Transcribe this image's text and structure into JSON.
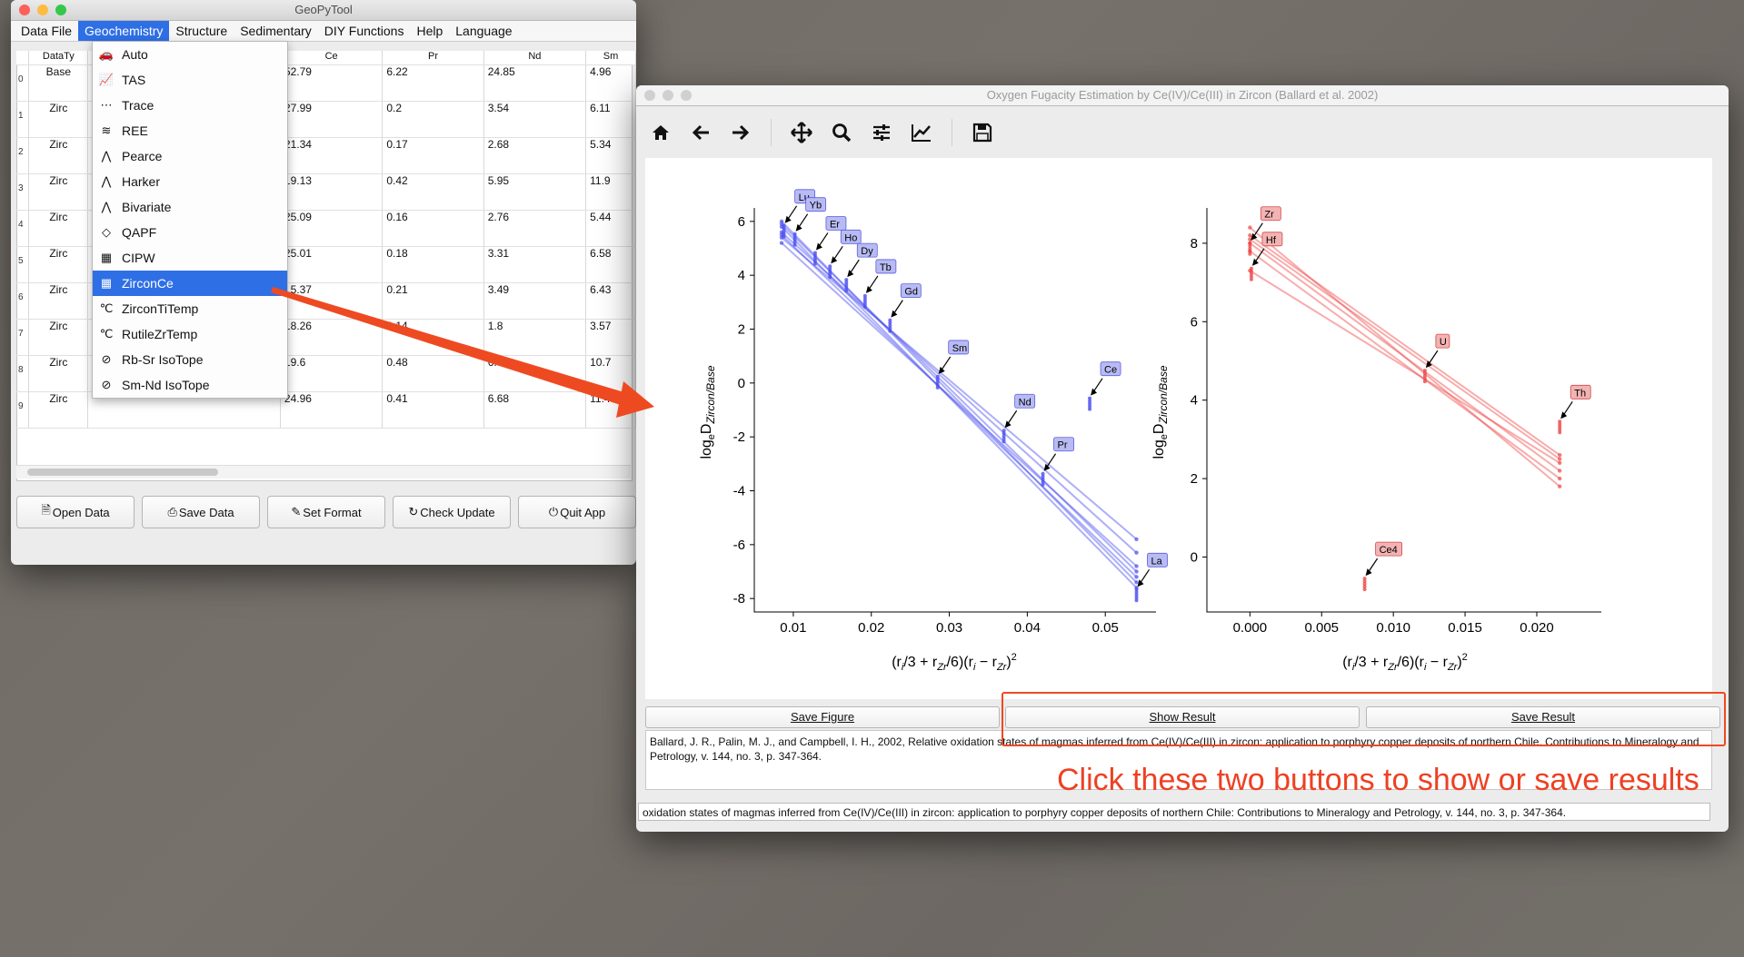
{
  "main_window": {
    "title": "GeoPyTool",
    "menu": [
      "Data File",
      "Geochemistry",
      "Structure",
      "Sedimentary",
      "DIY Functions",
      "Help",
      "Language"
    ],
    "active_menu": "Geochemistry",
    "table": {
      "headers": [
        "DataTy",
        "",
        "Ce",
        "Pr",
        "Nd",
        "Sm"
      ],
      "rows": [
        {
          "idx": "0",
          "type": "Base",
          "ce": "52.79",
          "pr": "6.22",
          "nd": "24.85",
          "sm": "4.96"
        },
        {
          "idx": "1",
          "type": "Zirc",
          "ce": "27.99",
          "pr": "0.2",
          "nd": "3.54",
          "sm": "6.11"
        },
        {
          "idx": "2",
          "type": "Zirc",
          "ce": "21.34",
          "pr": "0.17",
          "nd": "2.68",
          "sm": "5.34"
        },
        {
          "idx": "3",
          "type": "Zirc",
          "ce": "19.13",
          "pr": "0.42",
          "nd": "5.95",
          "sm": "11.9"
        },
        {
          "idx": "4",
          "type": "Zirc",
          "ce": "25.09",
          "pr": "0.16",
          "nd": "2.76",
          "sm": "5.44"
        },
        {
          "idx": "5",
          "type": "Zirc",
          "ce": "25.01",
          "pr": "0.18",
          "nd": "3.31",
          "sm": "6.58"
        },
        {
          "idx": "6",
          "type": "Zirc",
          "ce": "15.37",
          "pr": "0.21",
          "nd": "3.49",
          "sm": "6.43"
        },
        {
          "idx": "7",
          "type": "Zirc",
          "ce": "18.26",
          "pr": "0.14",
          "nd": "1.8",
          "sm": "3.57"
        },
        {
          "idx": "8",
          "type": "Zirc",
          "ce": "19.6",
          "pr": "0.48",
          "nd": "6.88",
          "sm": "10.7"
        },
        {
          "idx": "9",
          "type": "Zirc",
          "ce": "24.96",
          "pr": "0.41",
          "nd": "6.68",
          "sm": "11.4"
        }
      ]
    },
    "buttons": {
      "open": "Open Data",
      "save": "Save Data",
      "format": "Set Format",
      "update": "Check Update",
      "quit": "Quit App"
    },
    "dropdown": [
      {
        "label": "Auto",
        "icon": "car-icon"
      },
      {
        "label": "TAS",
        "icon": "tas-icon"
      },
      {
        "label": "Trace",
        "icon": "trace-icon"
      },
      {
        "label": "REE",
        "icon": "ree-icon"
      },
      {
        "label": "Pearce",
        "icon": "pearce-icon"
      },
      {
        "label": "Harker",
        "icon": "harker-icon"
      },
      {
        "label": "Bivariate",
        "icon": "bivariate-icon"
      },
      {
        "label": "QAPF",
        "icon": "diamond-icon"
      },
      {
        "label": "CIPW",
        "icon": "calendar-icon"
      },
      {
        "label": "ZirconCe",
        "icon": "calendar-icon"
      },
      {
        "label": "ZirconTiTemp",
        "icon": "celsius-icon"
      },
      {
        "label": "RutileZrTemp",
        "icon": "celsius-icon"
      },
      {
        "label": "Rb-Sr IsoTope",
        "icon": "isotope-icon"
      },
      {
        "label": "Sm-Nd IsoTope",
        "icon": "isotope-icon"
      }
    ],
    "selected_item": "ZirconCe"
  },
  "plot_window": {
    "title": "Oxygen Fugacity Estimation by Ce(IV)/Ce(III) in Zircon (Ballard et al. 2002)",
    "toolbar": [
      "home-icon",
      "back-arrow-icon",
      "forward-arrow-icon",
      "pan-icon",
      "zoom-icon",
      "configure-subplots-icon",
      "edit-axis-icon",
      "save-icon"
    ],
    "buttons": {
      "save_figure": "Save Figure",
      "show_result": "Show Result",
      "save_result": "Save Result"
    },
    "reference": "Ballard, J. R., Palin, M. J., and Campbell, I. H., 2002, Relative oxidation states of magmas inferred from Ce(IV)/Ce(III) in zircon: application to porphyry copper deposits of northern Chile. Contributions to Mineralogy and Petrology, v. 144, no. 3, p. 347-364.",
    "status": "oxidation states of magmas inferred from Ce(IV)/Ce(III) in zircon: application to porphyry copper deposits of northern Chile: Contributions to Mineralogy and Petrology, v. 144, no. 3, p. 347-364."
  },
  "annotation": "Click these two buttons to show or save results",
  "colors": {
    "blue": "#4a4ef0",
    "red": "#ef4646",
    "accent": "#2f6fe6",
    "annotation": "#ee4022"
  },
  "chart_data": [
    {
      "type": "line",
      "x_ticks": [
        "0.01",
        "0.02",
        "0.03",
        "0.04",
        "0.05"
      ],
      "y_ticks": [
        "-8",
        "-6",
        "-4",
        "-2",
        "0",
        "2",
        "4",
        "6"
      ],
      "xlim": [
        0.005,
        0.0565
      ],
      "ylim": [
        -8.5,
        6.5
      ],
      "labels": [
        {
          "t": "Lu",
          "x": 0.0088,
          "y": 5.9
        },
        {
          "t": "Yb",
          "x": 0.0102,
          "y": 5.6
        },
        {
          "t": "Er",
          "x": 0.0128,
          "y": 4.9
        },
        {
          "t": "Ho",
          "x": 0.0147,
          "y": 4.4
        },
        {
          "t": "Dy",
          "x": 0.0168,
          "y": 3.9
        },
        {
          "t": "Tb",
          "x": 0.0192,
          "y": 3.3
        },
        {
          "t": "Gd",
          "x": 0.0224,
          "y": 2.4
        },
        {
          "t": "Sm",
          "x": 0.0285,
          "y": 0.3
        },
        {
          "t": "Nd",
          "x": 0.037,
          "y": -1.7
        },
        {
          "t": "Pr",
          "x": 0.042,
          "y": -3.3
        },
        {
          "t": "Ce",
          "x": 0.048,
          "y": -0.5
        },
        {
          "t": "La",
          "x": 0.054,
          "y": -7.6
        }
      ],
      "lines": [
        [
          [
            0.0085,
            5.8
          ],
          [
            0.054,
            -7.6
          ]
        ],
        [
          [
            0.0085,
            5.5
          ],
          [
            0.054,
            -7.2
          ]
        ],
        [
          [
            0.0085,
            5.2
          ],
          [
            0.054,
            -6.8
          ]
        ],
        [
          [
            0.0085,
            5.9
          ],
          [
            0.054,
            -7.0
          ]
        ],
        [
          [
            0.0085,
            5.6
          ],
          [
            0.054,
            -6.3
          ]
        ],
        [
          [
            0.0085,
            5.4
          ],
          [
            0.054,
            -5.8
          ]
        ],
        [
          [
            0.0085,
            6.0
          ],
          [
            0.054,
            -7.4
          ]
        ]
      ]
    },
    {
      "type": "line",
      "x_ticks": [
        "0.000",
        "0.005",
        "0.010",
        "0.015",
        "0.020"
      ],
      "y_ticks": [
        "0",
        "2",
        "4",
        "6",
        "8"
      ],
      "xlim": [
        -0.003,
        0.0245
      ],
      "ylim": [
        -1.4,
        8.9
      ],
      "labels": [
        {
          "t": "Zr",
          "x": 0.0,
          "y": 8.05
        },
        {
          "t": "Hf",
          "x": 0.0001,
          "y": 7.4
        },
        {
          "t": "U",
          "x": 0.0122,
          "y": 4.8
        },
        {
          "t": "Th",
          "x": 0.0216,
          "y": 3.5
        },
        {
          "t": "Ce4",
          "x": 0.008,
          "y": -0.5
        }
      ],
      "lines": [
        [
          [
            0,
            8.2
          ],
          [
            0.0216,
            2.6
          ]
        ],
        [
          [
            0,
            8.0
          ],
          [
            0.0216,
            2.2
          ]
        ],
        [
          [
            0,
            7.8
          ],
          [
            0.0216,
            2.0
          ]
        ],
        [
          [
            0,
            8.4
          ],
          [
            0.0216,
            1.8
          ]
        ],
        [
          [
            0,
            7.3
          ],
          [
            0.0216,
            2.4
          ]
        ],
        [
          [
            0,
            8.1
          ],
          [
            0.0216,
            2.5
          ]
        ]
      ]
    }
  ]
}
